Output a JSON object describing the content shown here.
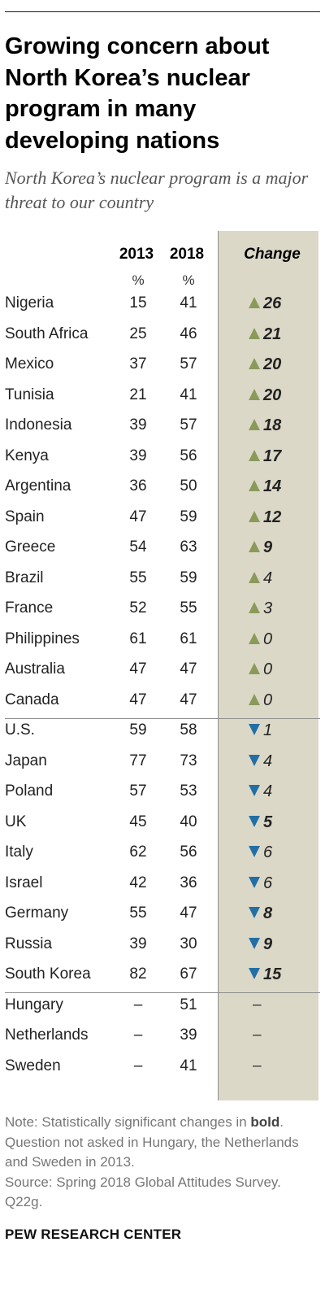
{
  "title": "Growing concern about North Korea’s nuclear program in many developing nations",
  "subtitle": "North Korea’s nuclear program is a major threat to our country",
  "columns": {
    "y2013": "2013",
    "y2018": "2018",
    "change": "Change",
    "pct": "%"
  },
  "colors": {
    "up": "#8a9a5b",
    "down": "#236fa5",
    "change_bg": "#dcd8c8"
  },
  "chart_data": {
    "type": "table",
    "columns": [
      "2013",
      "2018",
      "Change"
    ],
    "rows": [
      {
        "country": "Nigeria",
        "y2013": "15",
        "y2018": "41",
        "change": "26",
        "dir": "up",
        "sig": true
      },
      {
        "country": "South Africa",
        "y2013": "25",
        "y2018": "46",
        "change": "21",
        "dir": "up",
        "sig": true
      },
      {
        "country": "Mexico",
        "y2013": "37",
        "y2018": "57",
        "change": "20",
        "dir": "up",
        "sig": true
      },
      {
        "country": "Tunisia",
        "y2013": "21",
        "y2018": "41",
        "change": "20",
        "dir": "up",
        "sig": true
      },
      {
        "country": "Indonesia",
        "y2013": "39",
        "y2018": "57",
        "change": "18",
        "dir": "up",
        "sig": true
      },
      {
        "country": "Kenya",
        "y2013": "39",
        "y2018": "56",
        "change": "17",
        "dir": "up",
        "sig": true
      },
      {
        "country": "Argentina",
        "y2013": "36",
        "y2018": "50",
        "change": "14",
        "dir": "up",
        "sig": true
      },
      {
        "country": "Spain",
        "y2013": "47",
        "y2018": "59",
        "change": "12",
        "dir": "up",
        "sig": true
      },
      {
        "country": "Greece",
        "y2013": "54",
        "y2018": "63",
        "change": "9",
        "dir": "up",
        "sig": true
      },
      {
        "country": "Brazil",
        "y2013": "55",
        "y2018": "59",
        "change": "4",
        "dir": "up",
        "sig": false
      },
      {
        "country": "France",
        "y2013": "52",
        "y2018": "55",
        "change": "3",
        "dir": "up",
        "sig": false
      },
      {
        "country": "Philippines",
        "y2013": "61",
        "y2018": "61",
        "change": "0",
        "dir": "up",
        "sig": false
      },
      {
        "country": "Australia",
        "y2013": "47",
        "y2018": "47",
        "change": "0",
        "dir": "up",
        "sig": false
      },
      {
        "country": "Canada",
        "y2013": "47",
        "y2018": "47",
        "change": "0",
        "dir": "up",
        "sig": false
      },
      {
        "country": "U.S.",
        "y2013": "59",
        "y2018": "58",
        "change": "1",
        "dir": "down",
        "sig": false
      },
      {
        "country": "Japan",
        "y2013": "77",
        "y2018": "73",
        "change": "4",
        "dir": "down",
        "sig": false
      },
      {
        "country": "Poland",
        "y2013": "57",
        "y2018": "53",
        "change": "4",
        "dir": "down",
        "sig": false
      },
      {
        "country": "UK",
        "y2013": "45",
        "y2018": "40",
        "change": "5",
        "dir": "down",
        "sig": true
      },
      {
        "country": "Italy",
        "y2013": "62",
        "y2018": "56",
        "change": "6",
        "dir": "down",
        "sig": false
      },
      {
        "country": "Israel",
        "y2013": "42",
        "y2018": "36",
        "change": "6",
        "dir": "down",
        "sig": false
      },
      {
        "country": "Germany",
        "y2013": "55",
        "y2018": "47",
        "change": "8",
        "dir": "down",
        "sig": true
      },
      {
        "country": "Russia",
        "y2013": "39",
        "y2018": "30",
        "change": "9",
        "dir": "down",
        "sig": true
      },
      {
        "country": "South Korea",
        "y2013": "82",
        "y2018": "67",
        "change": "15",
        "dir": "down",
        "sig": true
      },
      {
        "country": "Hungary",
        "y2013": "–",
        "y2018": "51",
        "change": "–",
        "dir": "none",
        "sig": false
      },
      {
        "country": "Netherlands",
        "y2013": "–",
        "y2018": "39",
        "change": "–",
        "dir": "none",
        "sig": false
      },
      {
        "country": "Sweden",
        "y2013": "–",
        "y2018": "41",
        "change": "–",
        "dir": "none",
        "sig": false
      }
    ]
  },
  "note": {
    "line1": "Note: Statistically significant changes in",
    "bold_word": "bold",
    "line2": ". Question not asked in Hungary, the Netherlands and Sweden in 2013.",
    "source": "Source: Spring 2018 Global Attitudes Survey. Q22g."
  },
  "logo": "PEW RESEARCH CENTER"
}
